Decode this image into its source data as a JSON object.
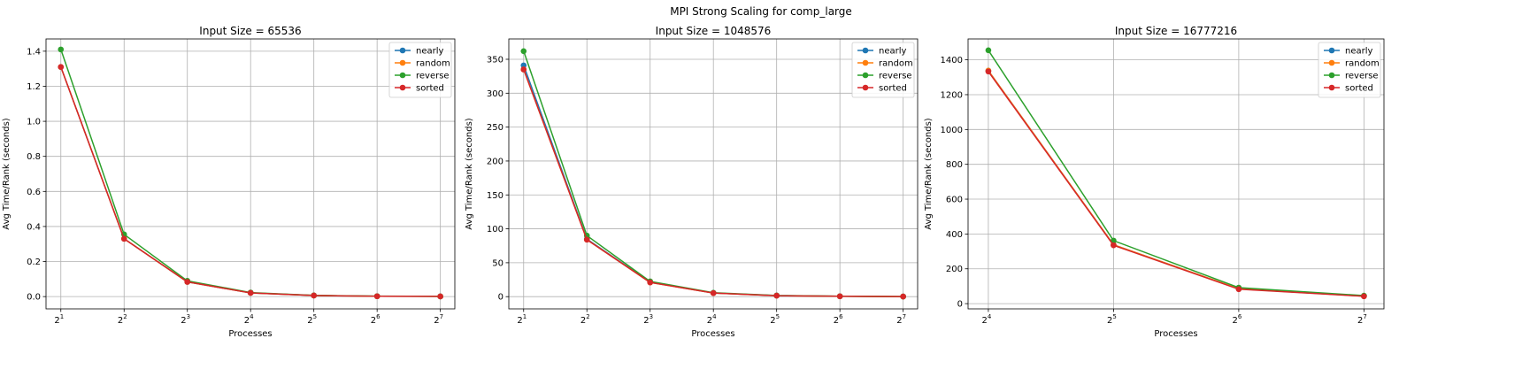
{
  "figure": {
    "title": "MPI Strong Scaling for comp_large"
  },
  "colors": {
    "nearly": "#1f77b4",
    "random": "#ff7f0e",
    "reverse": "#2ca02c",
    "sorted": "#d62728",
    "grid": "#b0b0b0"
  },
  "chart_data": [
    {
      "type": "line",
      "title": "Input Size = 65536",
      "xlabel": "Processes",
      "ylabel": "Avg Time/Rank (seconds)",
      "x_scale": "log2",
      "x": [
        2,
        4,
        8,
        16,
        32,
        64,
        128
      ],
      "x_tick_exponents": [
        "1",
        "2",
        "3",
        "4",
        "5",
        "6",
        "7"
      ],
      "xlim": [
        1.7,
        150
      ],
      "ylim": [
        -0.07,
        1.47
      ],
      "y_ticks": [
        "0.0",
        "0.2",
        "0.4",
        "0.6",
        "0.8",
        "1.0",
        "1.2",
        "1.4"
      ],
      "y_tick_values": [
        0,
        0.2,
        0.4,
        0.6,
        0.8,
        1.0,
        1.2,
        1.4
      ],
      "grid": true,
      "legend": "upper right",
      "series": [
        {
          "name": "nearly",
          "values": [
            1.31,
            0.33,
            0.084,
            0.021,
            0.006,
            0.002,
            0.001
          ]
        },
        {
          "name": "random",
          "values": [
            1.31,
            0.33,
            0.084,
            0.021,
            0.006,
            0.002,
            0.001
          ]
        },
        {
          "name": "reverse",
          "values": [
            1.41,
            0.355,
            0.09,
            0.023,
            0.0065,
            0.0025,
            0.001
          ]
        },
        {
          "name": "sorted",
          "values": [
            1.31,
            0.33,
            0.084,
            0.021,
            0.006,
            0.002,
            0.001
          ]
        }
      ]
    },
    {
      "type": "line",
      "title": "Input Size = 1048576",
      "xlabel": "Processes",
      "ylabel": "Avg Time/Rank (seconds)",
      "x_scale": "log2",
      "x": [
        2,
        4,
        8,
        16,
        32,
        64,
        128
      ],
      "x_tick_exponents": [
        "1",
        "2",
        "3",
        "4",
        "5",
        "6",
        "7"
      ],
      "xlim": [
        1.7,
        150
      ],
      "ylim": [
        -18,
        380
      ],
      "y_ticks": [
        "0",
        "50",
        "100",
        "150",
        "200",
        "250",
        "300",
        "350"
      ],
      "y_tick_values": [
        0,
        50,
        100,
        150,
        200,
        250,
        300,
        350
      ],
      "grid": true,
      "legend": "upper right",
      "series": [
        {
          "name": "nearly",
          "values": [
            341,
            85,
            21.5,
            5.4,
            1.6,
            0.5,
            0.2
          ]
        },
        {
          "name": "random",
          "values": [
            335,
            84,
            21,
            5.3,
            1.5,
            0.5,
            0.2
          ]
        },
        {
          "name": "reverse",
          "values": [
            362,
            90,
            22.5,
            5.7,
            1.7,
            0.6,
            0.2
          ]
        },
        {
          "name": "sorted",
          "values": [
            335,
            84,
            21,
            5.3,
            1.5,
            0.5,
            0.2
          ]
        }
      ]
    },
    {
      "type": "line",
      "title": "Input Size = 16777216",
      "xlabel": "Processes",
      "ylabel": "Avg Time/Rank (seconds)",
      "x_scale": "log2",
      "x": [
        16,
        32,
        64,
        128
      ],
      "x_tick_exponents": [
        "4",
        "5",
        "6",
        "7"
      ],
      "xlim": [
        14.3,
        143
      ],
      "ylim": [
        -30,
        1520
      ],
      "y_ticks": [
        "0",
        "200",
        "400",
        "600",
        "800",
        "1000",
        "1200",
        "1400"
      ],
      "y_tick_values": [
        0,
        200,
        400,
        600,
        800,
        1000,
        1200,
        1400
      ],
      "grid": true,
      "legend": "upper right",
      "series": [
        {
          "name": "nearly",
          "values": [
            1338,
            338,
            85,
            43
          ]
        },
        {
          "name": "random",
          "values": [
            1338,
            338,
            85,
            43
          ]
        },
        {
          "name": "reverse",
          "values": [
            1455,
            362,
            92,
            46
          ]
        },
        {
          "name": "sorted",
          "values": [
            1333,
            335,
            83,
            42
          ]
        }
      ]
    }
  ]
}
